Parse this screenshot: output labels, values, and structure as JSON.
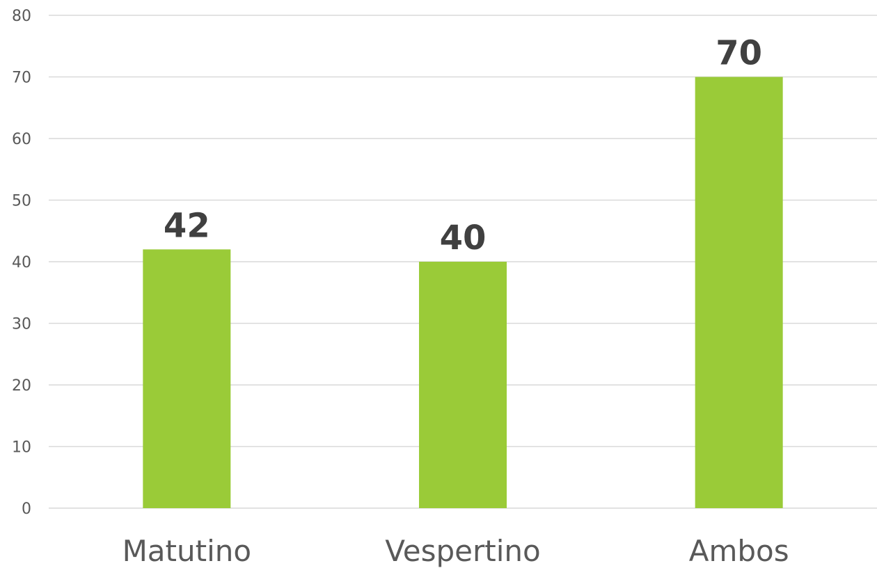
{
  "chart_data": {
    "type": "bar",
    "categories": [
      "Matutino",
      "Vespertino",
      "Ambos"
    ],
    "values": [
      42,
      40,
      70
    ],
    "data_labels": [
      "42",
      "40",
      "70"
    ],
    "title": "",
    "xlabel": "",
    "ylabel": "",
    "ylim": [
      0,
      80
    ],
    "yticks": [
      0,
      10,
      20,
      30,
      40,
      50,
      60,
      70,
      80
    ],
    "grid": true,
    "legend": "none",
    "bar_color": "#9acb38"
  }
}
